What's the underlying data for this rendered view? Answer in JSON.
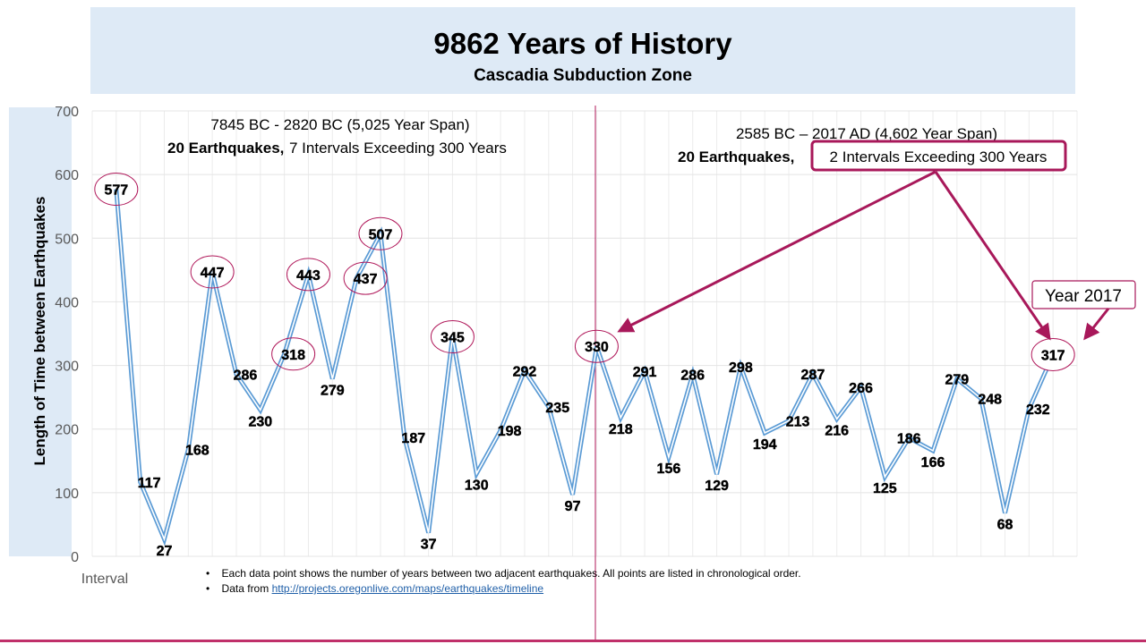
{
  "title": "9862 Years of History",
  "subtitle": "Cascadia Subduction Zone",
  "notes": [
    "Each data point shows the number of years between two adjacent earthquakes. All points are listed in chronological order.",
    "Data from "
  ],
  "notes_link": "http://projects.oregonlive.com/maps/earthquakes/timeline",
  "colors": {
    "line": "#5b9bd5",
    "accent": "#a8185a",
    "band": "#deeaf6"
  },
  "chart_data": {
    "type": "line",
    "title": "9862 Years of History",
    "xlabel": "Interval",
    "ylabel": "Length of Time between Earthquakes",
    "ylim": [
      0,
      700
    ],
    "yticks": [
      "0",
      "100",
      "200",
      "300",
      "400",
      "500",
      "600",
      "700"
    ],
    "grid": true,
    "values": [
      577,
      117,
      27,
      168,
      447,
      286,
      230,
      318,
      443,
      279,
      437,
      507,
      187,
      37,
      345,
      130,
      198,
      292,
      235,
      97,
      330,
      218,
      291,
      156,
      286,
      129,
      298,
      194,
      213,
      287,
      216,
      266,
      125,
      186,
      166,
      279,
      248,
      68,
      232,
      317
    ],
    "circled_indices": [
      0,
      4,
      7,
      8,
      10,
      11,
      14,
      20,
      39
    ],
    "annotations": {
      "left_span": "7845 BC - 2820 BC (5,025 Year Span)",
      "left_count": "20 Earthquakes,",
      "left_detail": "7 Intervals  Exceeding  300 Years",
      "right_span": "2585 BC – 2017 AD (4,602 Year Span)",
      "right_count": "20 Earthquakes,",
      "right_detail": "2 Intervals  Exceeding  300 Years",
      "year_label": "Year 2017"
    }
  }
}
